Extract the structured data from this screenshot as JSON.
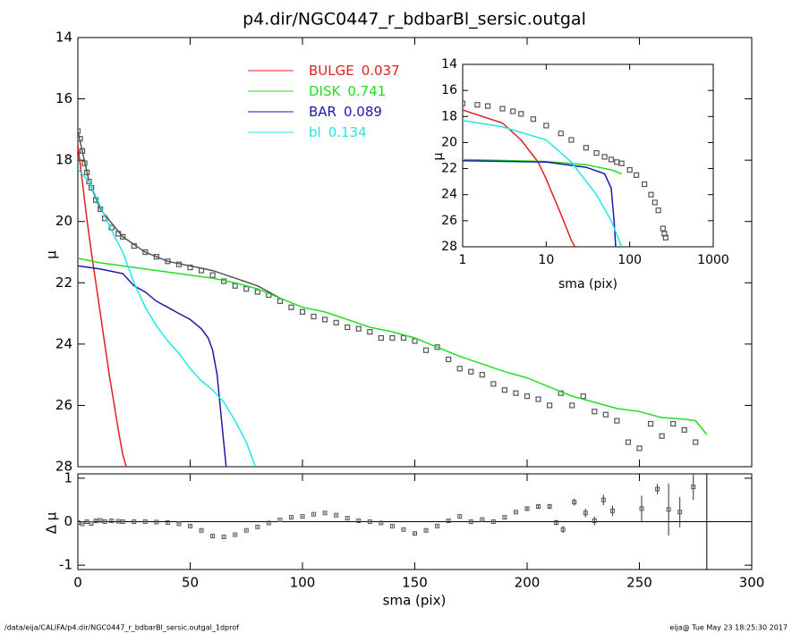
{
  "chart_data": [
    {
      "type": "line",
      "title": "p4.dir/NGC0447_r_bdbarBl_sersic.outgal",
      "ylabel": "μ",
      "xlim": [
        0,
        300
      ],
      "ylim": [
        28,
        14
      ],
      "xticks": [
        0,
        50,
        100,
        150,
        200,
        250,
        300
      ],
      "xtick_labels": false,
      "yticks": [
        14,
        16,
        18,
        20,
        22,
        24,
        26,
        28
      ],
      "series": [
        {
          "style": "markers",
          "color": "#555555",
          "x": [
            0,
            1,
            2,
            3,
            4,
            5,
            6,
            8,
            10,
            12,
            15,
            18,
            20,
            25,
            30,
            35,
            40,
            45,
            50,
            55,
            60,
            65,
            70,
            75,
            80,
            85,
            90,
            95,
            100,
            105,
            110,
            115,
            120,
            125,
            130,
            135,
            140,
            145,
            150,
            155,
            160,
            165,
            170,
            175,
            180,
            185,
            190,
            195,
            200,
            205,
            210,
            215,
            220,
            225,
            230,
            235,
            240,
            245,
            250,
            255,
            260,
            265,
            270,
            275
          ],
          "values": [
            17.05,
            17.3,
            17.7,
            18.1,
            18.4,
            18.7,
            18.9,
            19.3,
            19.6,
            19.9,
            20.2,
            20.4,
            20.5,
            20.8,
            21.0,
            21.15,
            21.3,
            21.4,
            21.5,
            21.6,
            21.75,
            21.95,
            22.1,
            22.2,
            22.3,
            22.4,
            22.6,
            22.8,
            22.95,
            23.1,
            23.2,
            23.3,
            23.45,
            23.5,
            23.6,
            23.8,
            23.8,
            23.8,
            23.9,
            24.2,
            24.1,
            24.5,
            24.8,
            24.9,
            25.0,
            25.3,
            25.5,
            25.6,
            25.7,
            25.8,
            26.0,
            25.6,
            26.0,
            25.7,
            26.2,
            26.3,
            26.5,
            27.2,
            27.4,
            26.6,
            27.0,
            26.6,
            26.8,
            27.2
          ]
        },
        {
          "style": "line",
          "color": "#555555",
          "x": [
            0,
            5,
            10,
            20,
            30,
            40,
            50,
            60,
            70,
            80,
            90
          ],
          "values": [
            17.05,
            18.7,
            19.6,
            20.5,
            21.0,
            21.3,
            21.45,
            21.6,
            21.85,
            22.1,
            22.5
          ]
        },
        {
          "style": "line",
          "name": "BULGE",
          "fraction": 0.037,
          "color": "#e02020",
          "x": [
            0,
            2,
            4,
            6,
            8,
            10,
            12,
            14,
            16,
            18,
            20,
            21.5
          ],
          "values": [
            17.5,
            18.7,
            19.9,
            21.0,
            22.0,
            23.0,
            24.0,
            25.0,
            25.9,
            26.8,
            27.6,
            28
          ]
        },
        {
          "style": "line",
          "name": "DISK",
          "fraction": 0.741,
          "color": "#22dd22",
          "x": [
            0,
            10,
            20,
            30,
            40,
            50,
            60,
            70,
            80,
            90,
            100,
            110,
            120,
            130,
            140,
            150,
            160,
            170,
            180,
            190,
            200,
            210,
            220,
            230,
            240,
            250,
            260,
            270,
            275,
            280
          ],
          "values": [
            21.2,
            21.35,
            21.45,
            21.55,
            21.65,
            21.75,
            21.85,
            22.0,
            22.2,
            22.5,
            22.8,
            22.95,
            23.2,
            23.45,
            23.6,
            23.8,
            24.1,
            24.4,
            24.65,
            24.9,
            25.1,
            25.4,
            25.7,
            25.9,
            26.1,
            26.2,
            26.4,
            26.45,
            26.5,
            26.95
          ]
        },
        {
          "style": "line",
          "name": "BAR",
          "fraction": 0.089,
          "color": "#1a1aa8",
          "x": [
            0,
            10,
            20,
            25,
            30,
            35,
            40,
            45,
            50,
            55,
            58,
            60,
            62,
            64,
            66
          ],
          "values": [
            21.45,
            21.55,
            21.7,
            22.1,
            22.3,
            22.6,
            22.8,
            23.0,
            23.2,
            23.5,
            23.8,
            24.2,
            25.0,
            26.5,
            28
          ]
        },
        {
          "style": "line",
          "name": "bl",
          "fraction": 0.134,
          "color": "#22e6e6",
          "x": [
            0,
            5,
            10,
            15,
            20,
            25,
            30,
            35,
            40,
            45,
            50,
            55,
            60,
            65,
            70,
            75,
            79
          ],
          "values": [
            18.3,
            18.7,
            19.5,
            20.3,
            21.0,
            22.0,
            22.8,
            23.4,
            23.9,
            24.3,
            24.8,
            25.2,
            25.5,
            25.9,
            26.5,
            27.2,
            28
          ]
        }
      ]
    },
    {
      "type": "line",
      "xlabel": "sma (pix)",
      "ylabel": "μ",
      "xlog": true,
      "xlim": [
        1,
        1000
      ],
      "ylim": [
        28,
        14
      ],
      "xticks": [
        1,
        10,
        100,
        1000
      ],
      "yticks": [
        14,
        16,
        18,
        20,
        22,
        24,
        26,
        28
      ],
      "series": [
        {
          "style": "markers",
          "color": "#555555",
          "x": [
            1,
            1.5,
            2,
            3,
            4,
            5,
            7,
            10,
            15,
            20,
            30,
            40,
            50,
            60,
            70,
            80,
            100,
            120,
            150,
            180,
            200,
            220,
            250,
            260,
            270
          ],
          "values": [
            17.0,
            17.1,
            17.2,
            17.4,
            17.6,
            17.8,
            18.2,
            18.7,
            19.3,
            19.8,
            20.4,
            20.8,
            21.1,
            21.3,
            21.5,
            21.6,
            22.1,
            22.5,
            23.2,
            24.0,
            24.6,
            25.2,
            26.6,
            27.0,
            27.3
          ]
        },
        {
          "style": "line",
          "color": "#e02020",
          "x": [
            1,
            3,
            5,
            8,
            10,
            15,
            20,
            22
          ],
          "values": [
            17.5,
            18.5,
            19.8,
            21.5,
            22.8,
            25.5,
            27.5,
            28
          ]
        },
        {
          "style": "line",
          "color": "#22dd22",
          "x": [
            1,
            10,
            30,
            60,
            80
          ],
          "values": [
            21.3,
            21.45,
            21.7,
            22.1,
            22.4
          ]
        },
        {
          "style": "line",
          "color": "#1a1aa8",
          "x": [
            1,
            10,
            30,
            50,
            60,
            65,
            68
          ],
          "values": [
            21.4,
            21.5,
            21.9,
            22.4,
            23.5,
            26,
            28
          ]
        },
        {
          "style": "line",
          "color": "#22e6e6",
          "x": [
            1,
            3,
            10,
            20,
            40,
            60,
            80
          ],
          "values": [
            18.3,
            18.8,
            19.8,
            21.5,
            24,
            26,
            28
          ]
        }
      ]
    },
    {
      "type": "scatter",
      "xlabel": "sma (pix)",
      "ylabel": "Δ μ",
      "xlim": [
        0,
        300
      ],
      "ylim": [
        -1.1,
        1.1
      ],
      "xticks": [
        0,
        50,
        100,
        150,
        200,
        250,
        300
      ],
      "yticks": [
        -1,
        0,
        1
      ],
      "hline": 0,
      "vline": 280,
      "series": [
        {
          "style": "errors",
          "color": "#555555",
          "x": [
            0,
            2,
            4,
            6,
            8,
            10,
            12,
            15,
            18,
            20,
            25,
            30,
            35,
            40,
            45,
            50,
            55,
            60,
            65,
            70,
            75,
            80,
            85,
            90,
            95,
            100,
            105,
            110,
            115,
            120,
            125,
            130,
            135,
            140,
            145,
            150,
            155,
            160,
            165,
            170,
            175,
            180,
            185,
            190,
            195,
            200,
            205,
            210,
            213,
            216,
            221,
            226,
            230,
            234,
            238,
            251,
            258,
            263,
            268,
            274
          ],
          "values": [
            -0.02,
            -0.05,
            0.0,
            -0.04,
            0.02,
            0.03,
            0.0,
            0.02,
            0.01,
            0.0,
            0.0,
            0.0,
            -0.01,
            -0.02,
            -0.05,
            -0.1,
            -0.2,
            -0.33,
            -0.35,
            -0.3,
            -0.2,
            -0.12,
            -0.03,
            0.04,
            0.1,
            0.12,
            0.17,
            0.2,
            0.15,
            0.08,
            0.02,
            0.0,
            -0.03,
            -0.1,
            -0.18,
            -0.27,
            -0.2,
            -0.1,
            0.02,
            0.12,
            0.0,
            0.05,
            0.0,
            0.1,
            0.22,
            0.3,
            0.35,
            0.35,
            -0.02,
            -0.18,
            0.45,
            0.2,
            0.02,
            0.5,
            0.25,
            0.3,
            0.75,
            0.28,
            0.22,
            0.8
          ],
          "errors": [
            0.02,
            0.02,
            0.02,
            0.02,
            0.02,
            0.02,
            0.02,
            0.02,
            0.02,
            0.02,
            0.02,
            0.02,
            0.02,
            0.02,
            0.02,
            0.02,
            0.02,
            0.02,
            0.02,
            0.02,
            0.02,
            0.02,
            0.02,
            0.02,
            0.02,
            0.02,
            0.02,
            0.02,
            0.02,
            0.02,
            0.02,
            0.02,
            0.02,
            0.02,
            0.02,
            0.02,
            0.02,
            0.02,
            0.02,
            0.02,
            0.02,
            0.02,
            0.02,
            0.02,
            0.02,
            0.05,
            0.05,
            0.06,
            0.06,
            0.08,
            0.08,
            0.1,
            0.1,
            0.12,
            0.12,
            0.3,
            0.12,
            0.6,
            0.35,
            0.3
          ]
        }
      ]
    }
  ],
  "footer": {
    "left": "/data/eija/CALIFA/p4.dir/NGC0447_r_bdbarBl_sersic.outgal_1dprof",
    "right": "eija@  Tue May 23 18:25:30 2017"
  }
}
